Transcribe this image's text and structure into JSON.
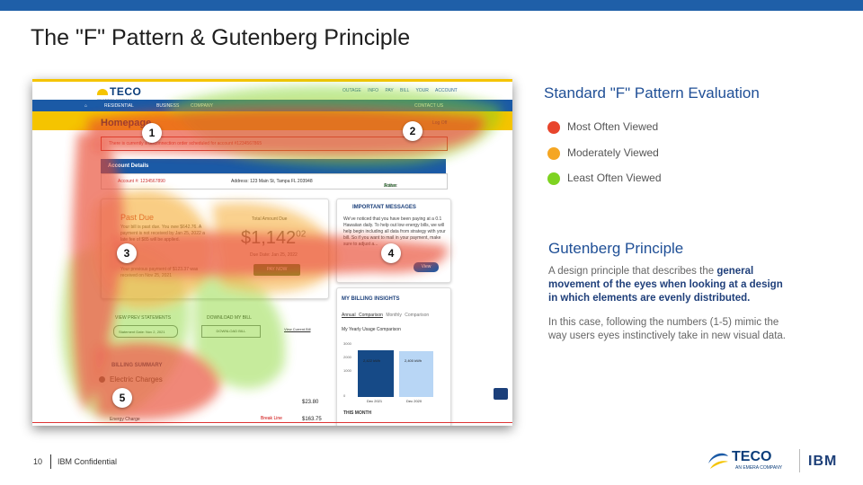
{
  "slide": {
    "title": "The \"F\" Pattern & Gutenberg Principle",
    "page_number": "10",
    "confidential": "IBM Confidential",
    "accent_color": "#1f5fa8"
  },
  "screenshot": {
    "logo_text": "TECO",
    "logo_tagline": "AN EMERA COMPANY",
    "top_links": [
      "OUTAGE INFO",
      "PAY BILL",
      "YOUR ACCOUNT"
    ],
    "nav_items": [
      "RESIDENTIAL",
      "BUSINESS",
      "COMPANY"
    ],
    "contact_us": "CONTACT US",
    "home_title": "Homepage",
    "log_off": "Log Off",
    "alert_text": "There is currently a disconnection order scheduled for account #1234567865",
    "account_details_header": "Account Details",
    "account_number": "Account #: 1234567890",
    "address": "Address: 123 Main St, Tampa FL 203948",
    "status_label": "Status: ",
    "status_value": "Active",
    "past_due_title": "Past Due",
    "past_due_text": "Your bill is past due. You owe $642.76. A payment is not received by Jan 25, 2022 a late fee of $85 will be applied.",
    "prev_payment_text": "Your previous payment of $123.37 was received on Nov 25, 2021",
    "total_amount_due_label": "Total Amount Due",
    "total_amount_due_main": "$1,142",
    "total_amount_due_cents": "02",
    "due_date": "Due Date: Jan 25, 2022",
    "pay_now": "PAY NOW",
    "important_messages_title": "IMPORTANT MESSAGES",
    "important_messages_text": "We've noticed that you have been paying at a 0.1 Hawaiian daily. To help out low energy bills, we will help begin including all data from strategy with your bill. So if you want to mail in your payment, make sure to adjust a...",
    "view_button": "View",
    "billing_insights_title": "MY BILLING INSIGHTS",
    "billing_tabs": [
      "Annual Comparison",
      "Monthly Comparison"
    ],
    "usage_comparison_title": "My Yearly Usage Comparison",
    "y_axis_ticks": [
      "3000",
      "2000",
      "1000",
      "0"
    ],
    "this_month_label": "THIS MONTH",
    "view_prev_statements": "VIEW PREV STATEMENTS",
    "download_my_bill": "DOWNLOAD MY BILL",
    "statement_select": "Statement Date: Nov 2, 2021",
    "download_bill_btn": "DOWNLOAD BILL",
    "view_current_bill": "View Current Bill",
    "billing_summary": "BILLING SUMMARY",
    "electric_charges": "Electric Charges",
    "amount_1": "$23.80",
    "energy_charge": "Energy Charge",
    "break_line": "Break Line",
    "amount_2": "$163.75",
    "chat_label": "CHAT WITH US"
  },
  "chart_data": {
    "type": "bar",
    "title": "My Yearly Usage Comparison",
    "categories": [
      "Dec 2021",
      "Dec 2020"
    ],
    "values": [
      2422,
      2400
    ],
    "data_labels": [
      "2,422 kWh",
      "2,400 kWh"
    ],
    "ylim": [
      0,
      3000
    ],
    "colors": [
      "#164a87",
      "#b8d6f5"
    ]
  },
  "heatmap_markers": [
    "1",
    "2",
    "3",
    "4",
    "5"
  ],
  "right_panel": {
    "f_pattern_title": "Standard \"F\" Pattern Evaluation",
    "legend": [
      {
        "label": "Most Often Viewed",
        "color": "#e8452c"
      },
      {
        "label": "Moderately Viewed",
        "color": "#f5a623"
      },
      {
        "label": "Least Often Viewed",
        "color": "#7ed321"
      }
    ],
    "gutenberg_title": "Gutenberg Principle",
    "gutenberg_desc_lead": "A design principle that describes the ",
    "gutenberg_desc_bold": "general movement of the eyes when looking at a design in which elements are evenly distributed.",
    "gutenberg_case": "In this case, following the numbers (1-5) mimic the way users eyes instinctively take in new visual data."
  },
  "footer_logos": {
    "teco": "TECO",
    "teco_tagline": "AN EMERA COMPANY",
    "ibm": "IBM"
  }
}
